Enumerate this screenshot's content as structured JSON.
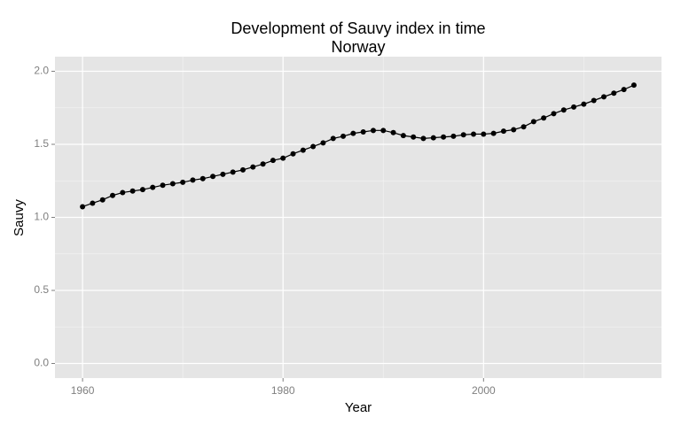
{
  "chart_data": {
    "type": "line",
    "title": "Development of Sauvy index in time",
    "subtitle": "Norway",
    "x_label": "Year",
    "y_label": "Sauvy",
    "x": [
      1960,
      1961,
      1962,
      1963,
      1964,
      1965,
      1966,
      1967,
      1968,
      1969,
      1970,
      1971,
      1972,
      1973,
      1974,
      1975,
      1976,
      1977,
      1978,
      1979,
      1980,
      1981,
      1982,
      1983,
      1984,
      1985,
      1986,
      1987,
      1988,
      1989,
      1990,
      1991,
      1992,
      1993,
      1994,
      1995,
      1996,
      1997,
      1998,
      1999,
      2000,
      2001,
      2002,
      2003,
      2004,
      2005,
      2006,
      2007,
      2008,
      2009,
      2010,
      2011,
      2012,
      2013,
      2014,
      2015
    ],
    "series": [
      {
        "name": "Sauvy",
        "color": "#000000",
        "values": [
          1.073,
          1.097,
          1.12,
          1.15,
          1.17,
          1.18,
          1.19,
          1.205,
          1.22,
          1.23,
          1.24,
          1.255,
          1.265,
          1.28,
          1.295,
          1.31,
          1.325,
          1.345,
          1.365,
          1.39,
          1.405,
          1.435,
          1.46,
          1.485,
          1.51,
          1.54,
          1.555,
          1.575,
          1.585,
          1.595,
          1.595,
          1.58,
          1.56,
          1.55,
          1.54,
          1.545,
          1.55,
          1.555,
          1.565,
          1.57,
          1.57,
          1.575,
          1.59,
          1.6,
          1.62,
          1.655,
          1.68,
          1.71,
          1.735,
          1.755,
          1.775,
          1.8,
          1.825,
          1.85,
          1.875,
          1.905
        ]
      }
    ],
    "xlim": [
      1957.25,
      2017.75
    ],
    "xticks": [
      1960,
      1980,
      2000
    ],
    "ylim": [
      -0.1,
      2.1
    ],
    "yticks": [
      {
        "value": 0,
        "label": "0.0"
      },
      {
        "value": 0.5,
        "label": "0.5"
      },
      {
        "value": 1,
        "label": "1.0"
      },
      {
        "value": 1.5,
        "label": "1.5"
      },
      {
        "value": 2,
        "label": "2.0"
      }
    ],
    "grid": true,
    "markers": true
  }
}
